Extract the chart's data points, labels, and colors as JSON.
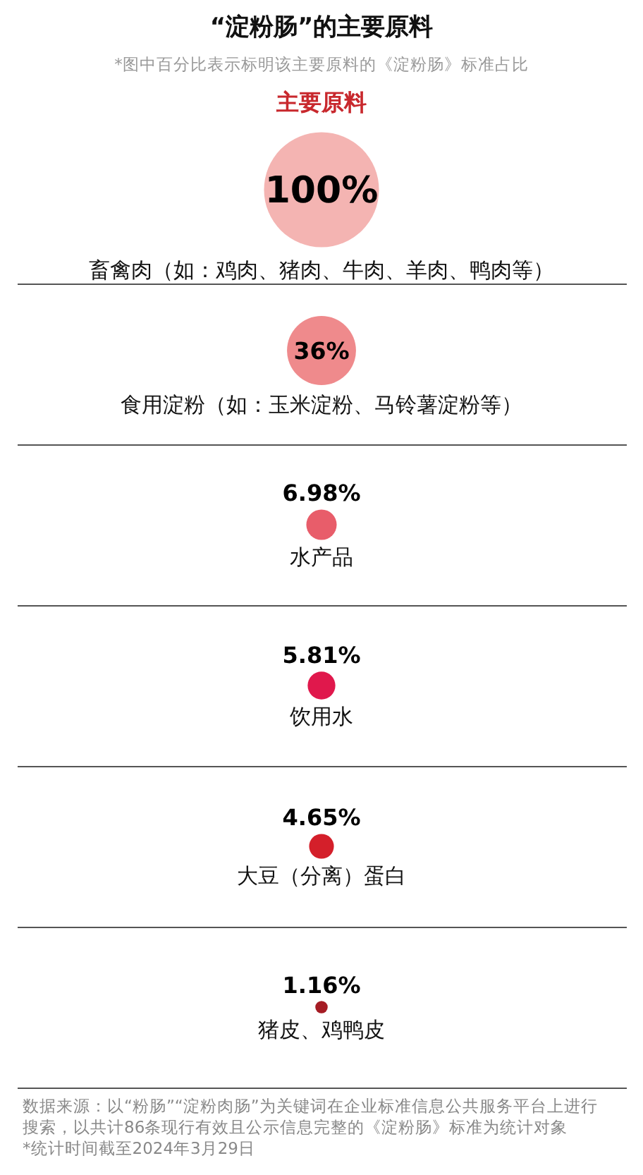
{
  "chart_data": {
    "type": "other",
    "title": "“淀粉肠”的主要原料",
    "subtitle": "*图中百分比表示标明该主要原料的《淀粉肠》标准占比",
    "categories": [
      "畜禽肉（如：鸡肉、猪肉、牛肉、羊肉、鸭肉等）",
      "食用淀粉（如：玉米淀粉、马铃薯淀粉等）",
      "水产品",
      "饮用水",
      "大豆（分离）蛋白",
      "猪皮、鸡鸭皮"
    ],
    "values": [
      100,
      36,
      6.98,
      5.81,
      4.65,
      1.16
    ],
    "value_labels": [
      "100%",
      "36%",
      "6.98%",
      "5.81%",
      "4.65%",
      "1.16%"
    ],
    "colors": [
      "#f4b4b2",
      "#ef8a8c",
      "#e85d6a",
      "#e0184c",
      "#d41f2a",
      "#a51c24"
    ],
    "annotations": [
      "主要原料",
      "数据来源：以“粉肠”“淀粉肉肠”为关键词在企业标准信息公共服务平台上进行搜索，以共计86条现行有效且公示信息完整的《淀粉肠》标准为统计对象",
      "*统计时间截至2024年3月29日"
    ]
  }
}
